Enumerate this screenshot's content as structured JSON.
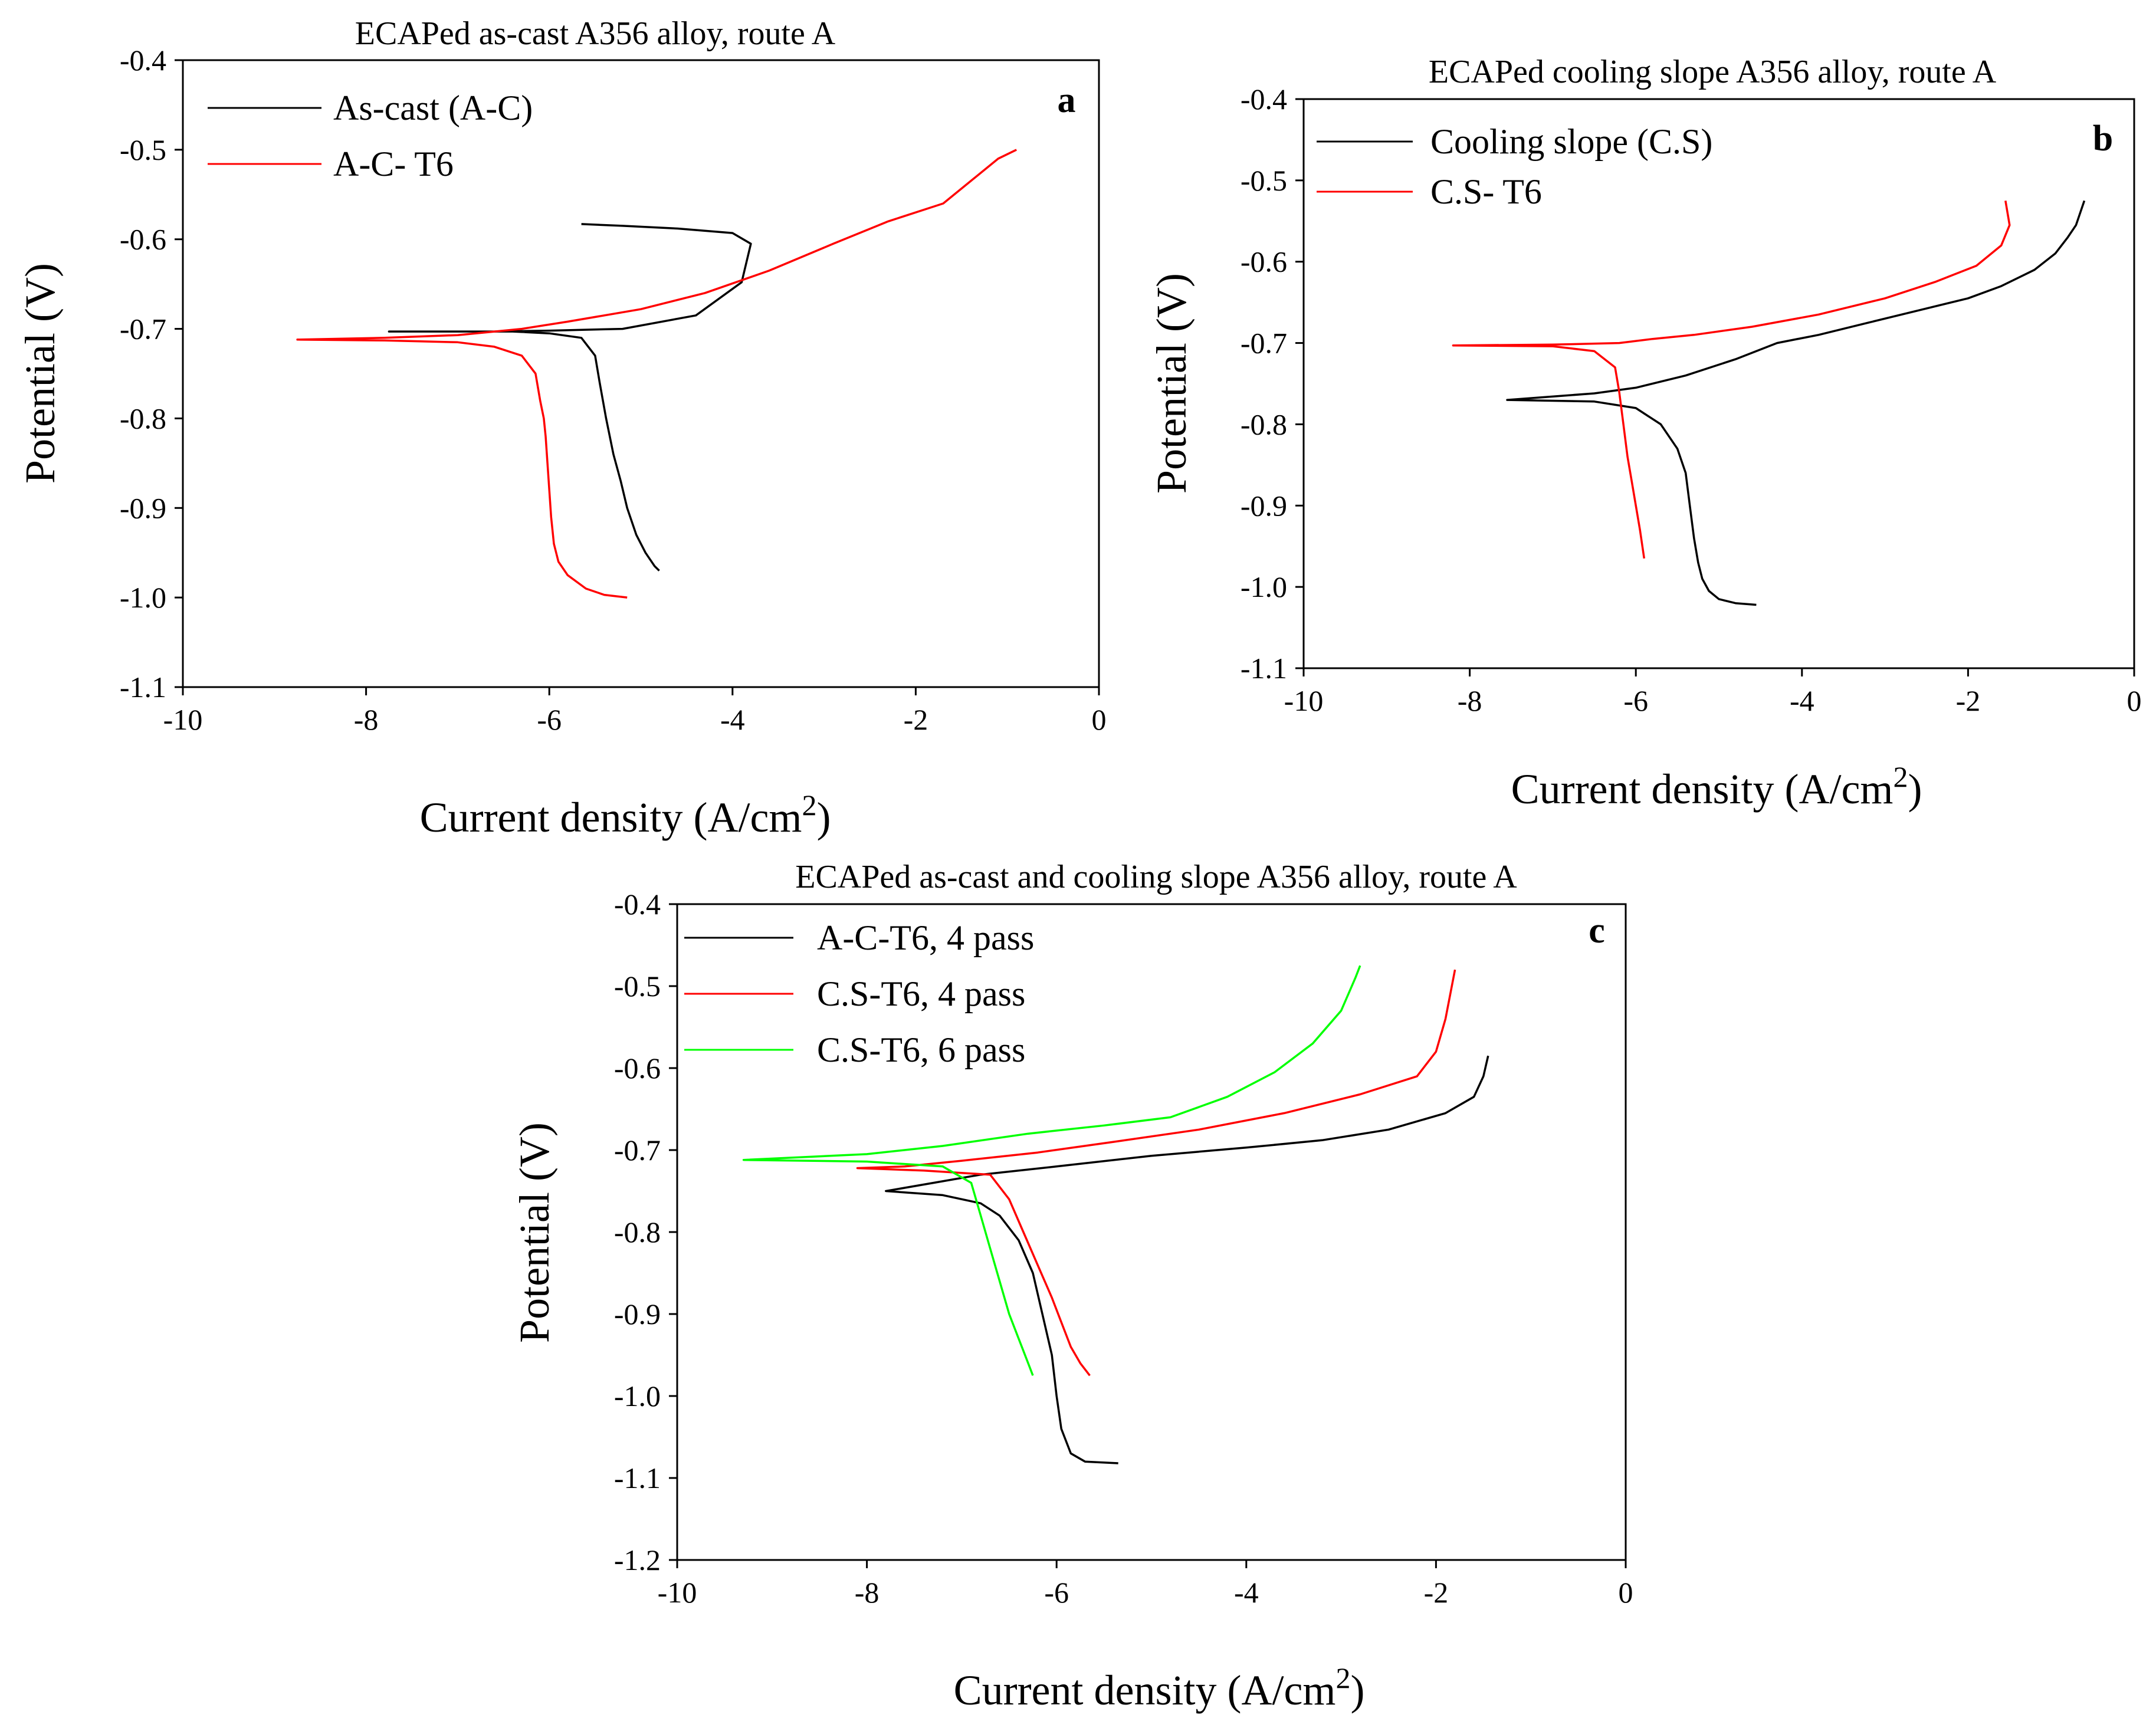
{
  "figure_type": "Potentiodynamic polarization curves",
  "chart_data": [
    {
      "id": "a",
      "type": "line",
      "title": "ECAPed as-cast A356 alloy, route A",
      "panel_letter": "a",
      "xlabel": "Current density (A/cm",
      "xlabel_sup": "2",
      "xlabel_close": ")",
      "ylabel": "Potential (V)",
      "xlim": [
        -10,
        0
      ],
      "ylim": [
        -1.1,
        -0.4
      ],
      "xticks": [
        -10,
        -8,
        -6,
        -4,
        -2,
        0
      ],
      "yticks": [
        -1.1,
        -1.0,
        -0.9,
        -0.8,
        -0.7,
        -0.6,
        -0.5,
        -0.4
      ],
      "xtick_labels": [
        "-10",
        "-8",
        "-6",
        "-4",
        "-2",
        "0"
      ],
      "ytick_labels": [
        "-1.1",
        "-1.0",
        "-0.9",
        "-0.8",
        "-0.7",
        "-0.6",
        "-0.5",
        "-0.4"
      ],
      "legend_position": "top-left",
      "series": [
        {
          "name": "As-cast (A-C)",
          "color": "#000000",
          "x": [
            -5.65,
            -5.2,
            -4.6,
            -4.0,
            -3.8,
            -3.9,
            -4.4,
            -5.2,
            -6.0,
            -6.6,
            -7.1,
            -7.75,
            -7.0,
            -6.4,
            -6.0,
            -5.65,
            -5.5,
            -5.45,
            -5.38,
            -5.3,
            -5.22,
            -5.15,
            -5.05,
            -4.95,
            -4.85,
            -4.8
          ],
          "y": [
            -0.583,
            -0.585,
            -0.588,
            -0.593,
            -0.605,
            -0.648,
            -0.685,
            -0.7,
            -0.702,
            -0.703,
            -0.703,
            -0.703,
            -0.703,
            -0.703,
            -0.705,
            -0.71,
            -0.73,
            -0.76,
            -0.8,
            -0.84,
            -0.87,
            -0.9,
            -0.93,
            -0.95,
            -0.965,
            -0.97
          ]
        },
        {
          "name": "A-C- T6",
          "color": "#ff0000",
          "x": [
            -0.9,
            -1.1,
            -1.4,
            -1.7,
            -2.3,
            -2.9,
            -3.6,
            -4.3,
            -5.0,
            -5.8,
            -6.3,
            -7.0,
            -7.8,
            -8.75,
            -7.8,
            -7.0,
            -6.6,
            -6.3,
            -6.15,
            -6.1,
            -6.06,
            -6.04,
            -6.02,
            -6.0,
            -5.98,
            -5.95,
            -5.9,
            -5.8,
            -5.6,
            -5.4,
            -5.15
          ],
          "y": [
            -0.5,
            -0.51,
            -0.535,
            -0.56,
            -0.58,
            -0.605,
            -0.635,
            -0.66,
            -0.678,
            -0.692,
            -0.7,
            -0.707,
            -0.71,
            -0.712,
            -0.713,
            -0.715,
            -0.72,
            -0.73,
            -0.75,
            -0.78,
            -0.8,
            -0.82,
            -0.85,
            -0.88,
            -0.91,
            -0.94,
            -0.96,
            -0.975,
            -0.99,
            -0.997,
            -1.0
          ]
        }
      ]
    },
    {
      "id": "b",
      "type": "line",
      "title": "ECAPed cooling slope A356 alloy, route A",
      "panel_letter": "b",
      "xlabel": "Current density (A/cm",
      "xlabel_sup": "2",
      "xlabel_close": ")",
      "ylabel": "Potential (V)",
      "xlim": [
        -10,
        0
      ],
      "ylim": [
        -1.1,
        -0.4
      ],
      "xticks": [
        -10,
        -8,
        -6,
        -4,
        -2,
        0
      ],
      "yticks": [
        -1.1,
        -1.0,
        -0.9,
        -0.8,
        -0.7,
        -0.6,
        -0.5,
        -0.4
      ],
      "xtick_labels": [
        "-10",
        "-8",
        "-6",
        "-4",
        "-2",
        "0"
      ],
      "ytick_labels": [
        "-1.1",
        "-1.0",
        "-0.9",
        "-0.8",
        "-0.7",
        "-0.6",
        "-0.5",
        "-0.4"
      ],
      "legend_position": "top-left",
      "series": [
        {
          "name": "Cooling slope (C.S)",
          "color": "#000000",
          "x": [
            -0.6,
            -0.7,
            -0.8,
            -0.95,
            -1.2,
            -1.6,
            -2.0,
            -2.6,
            -3.2,
            -3.8,
            -4.3,
            -4.8,
            -5.4,
            -6.0,
            -6.5,
            -7.55,
            -6.5,
            -6.0,
            -5.7,
            -5.5,
            -5.4,
            -5.35,
            -5.3,
            -5.25,
            -5.2,
            -5.12,
            -5.0,
            -4.8,
            -4.55
          ],
          "y": [
            -0.525,
            -0.555,
            -0.57,
            -0.59,
            -0.61,
            -0.63,
            -0.645,
            -0.66,
            -0.675,
            -0.69,
            -0.7,
            -0.72,
            -0.74,
            -0.755,
            -0.762,
            -0.77,
            -0.772,
            -0.78,
            -0.8,
            -0.83,
            -0.86,
            -0.9,
            -0.94,
            -0.97,
            -0.99,
            -1.005,
            -1.015,
            -1.02,
            -1.022
          ]
        },
        {
          "name": "C.S- T6",
          "color": "#ff0000",
          "x": [
            -1.55,
            -1.5,
            -1.6,
            -1.9,
            -2.4,
            -3.0,
            -3.8,
            -4.6,
            -5.3,
            -5.8,
            -6.2,
            -7.0,
            -8.2,
            -7.0,
            -6.5,
            -6.25,
            -6.2,
            -6.15,
            -6.1,
            -6.05,
            -6.0,
            -5.95,
            -5.9
          ],
          "y": [
            -0.525,
            -0.555,
            -0.58,
            -0.605,
            -0.625,
            -0.645,
            -0.665,
            -0.68,
            -0.69,
            -0.695,
            -0.7,
            -0.702,
            -0.703,
            -0.704,
            -0.71,
            -0.73,
            -0.76,
            -0.8,
            -0.84,
            -0.87,
            -0.9,
            -0.93,
            -0.965
          ]
        }
      ]
    },
    {
      "id": "c",
      "type": "line",
      "title": "ECAPed as-cast and cooling slope A356 alloy, route A",
      "panel_letter": "c",
      "xlabel": "Current density (A/cm",
      "xlabel_sup": "2",
      "xlabel_close": ")",
      "ylabel": "Potential (V)",
      "xlim": [
        -10,
        0
      ],
      "ylim": [
        -1.2,
        -0.4
      ],
      "xticks": [
        -10,
        -8,
        -6,
        -4,
        -2,
        0
      ],
      "yticks": [
        -1.2,
        -1.1,
        -1.0,
        -0.9,
        -0.8,
        -0.7,
        -0.6,
        -0.5,
        -0.4
      ],
      "xtick_labels": [
        "-10",
        "-8",
        "-6",
        "-4",
        "-2",
        "0"
      ],
      "ytick_labels": [
        "-1.2",
        "-1.1",
        "-1.0",
        "-0.9",
        "-0.8",
        "-0.7",
        "-0.6",
        "-0.5",
        "-0.4"
      ],
      "legend_position": "top-left",
      "series": [
        {
          "name": "A-C-T6, 4 pass",
          "color": "#000000",
          "x": [
            -1.45,
            -1.5,
            -1.6,
            -1.9,
            -2.5,
            -3.2,
            -4.0,
            -5.0,
            -6.0,
            -6.8,
            -7.3,
            -7.8,
            -7.2,
            -6.8,
            -6.6,
            -6.4,
            -6.25,
            -6.15,
            -6.05,
            -6.0,
            -5.95,
            -5.85,
            -5.7,
            -5.35
          ],
          "y": [
            -0.585,
            -0.61,
            -0.635,
            -0.655,
            -0.675,
            -0.688,
            -0.697,
            -0.707,
            -0.72,
            -0.73,
            -0.74,
            -0.75,
            -0.755,
            -0.765,
            -0.78,
            -0.81,
            -0.85,
            -0.9,
            -0.95,
            -1.0,
            -1.04,
            -1.07,
            -1.08,
            -1.082
          ]
        },
        {
          "name": "C.S-T6, 4 pass",
          "color": "#ff0000",
          "x": [
            -1.8,
            -1.9,
            -2.0,
            -2.2,
            -2.8,
            -3.6,
            -4.5,
            -5.4,
            -6.2,
            -7.0,
            -7.6,
            -8.1,
            -7.4,
            -6.7,
            -6.5,
            -6.35,
            -6.2,
            -6.05,
            -5.95,
            -5.85,
            -5.75,
            -5.65
          ],
          "y": [
            -0.48,
            -0.54,
            -0.58,
            -0.61,
            -0.632,
            -0.655,
            -0.675,
            -0.69,
            -0.703,
            -0.713,
            -0.72,
            -0.722,
            -0.725,
            -0.73,
            -0.76,
            -0.8,
            -0.84,
            -0.88,
            -0.91,
            -0.94,
            -0.96,
            -0.975
          ]
        },
        {
          "name": "C.S-T6, 6 pass",
          "color": "#00ff00",
          "x": [
            -2.8,
            -2.85,
            -3.0,
            -3.3,
            -3.7,
            -4.2,
            -4.8,
            -5.5,
            -6.3,
            -7.2,
            -8.0,
            -9.3,
            -8.0,
            -7.2,
            -6.9,
            -6.8,
            -6.7,
            -6.6,
            -6.5,
            -6.4,
            -6.3,
            -6.25
          ],
          "y": [
            -0.475,
            -0.49,
            -0.53,
            -0.57,
            -0.605,
            -0.635,
            -0.66,
            -0.67,
            -0.68,
            -0.695,
            -0.705,
            -0.712,
            -0.714,
            -0.72,
            -0.74,
            -0.78,
            -0.82,
            -0.86,
            -0.9,
            -0.93,
            -0.96,
            -0.975
          ]
        }
      ]
    }
  ]
}
